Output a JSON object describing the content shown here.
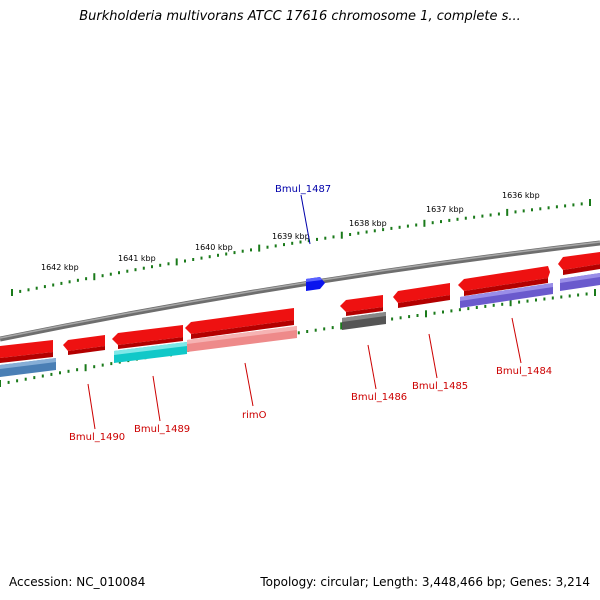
{
  "title": "Burkholderia multivorans ATCC 17616 chromosome 1, complete s...",
  "footer": {
    "accession": "Accession: NC_010084",
    "stats": "Topology: circular; Length: 3,448,466 bp; Genes: 3,214"
  },
  "colors": {
    "backbone": "#777777",
    "tick": "#1a7a1a",
    "label_red": "#cc0000",
    "label_blue": "#0000aa"
  },
  "ticks": [
    {
      "label": "1636 kbp"
    },
    {
      "label": "1637 kbp"
    },
    {
      "label": "1638 kbp"
    },
    {
      "label": "1639 kbp"
    },
    {
      "label": "1640 kbp"
    },
    {
      "label": "1641 kbp"
    },
    {
      "label": "1642 kbp"
    }
  ],
  "gene_labels": [
    {
      "text": "Bmul_1487",
      "color": "blue"
    },
    {
      "text": "Bmul_1484",
      "color": "red"
    },
    {
      "text": "Bmul_1485",
      "color": "red"
    },
    {
      "text": "Bmul_1486",
      "color": "red"
    },
    {
      "text": "rimO",
      "color": "red"
    },
    {
      "text": "Bmul_1489",
      "color": "red"
    },
    {
      "text": "Bmul_1490",
      "color": "red"
    }
  ],
  "gene_colors": {
    "forward": "#ee1111",
    "forward_light": "#ff6666",
    "cog_purple": "#6a5acd",
    "cog_cyan": "#11c8c8",
    "cog_pink": "#ee8a8a",
    "cog_gray": "#555555",
    "cog_steel": "#4a7fb5",
    "highlight_blue": "#0a14ee"
  }
}
